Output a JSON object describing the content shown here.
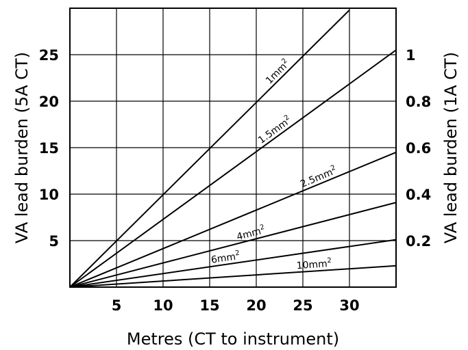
{
  "chart_data": {
    "type": "line",
    "xlabel": "Metres (CT to instrument)",
    "ylabel_left": "VA lead burden (5A CT)",
    "ylabel_right": "VA lead burden (1A CT)",
    "xlim": [
      0,
      35
    ],
    "ylim_left": [
      0,
      30
    ],
    "ylim_right": [
      0,
      1.2
    ],
    "x_ticks": [
      "5",
      "10",
      "15",
      "20",
      "25",
      "30"
    ],
    "y_ticks_left": [
      "5",
      "10",
      "15",
      "20",
      "25"
    ],
    "y_ticks_right": [
      "0.2",
      "0.4",
      "0.6",
      "0.8",
      "1"
    ],
    "grid": true,
    "series": [
      {
        "name": "1mm",
        "sup": "2",
        "x": [
          0,
          30.0
        ],
        "y": [
          0,
          29.8
        ]
      },
      {
        "name": "1.5mm",
        "sup": "2",
        "x": [
          0,
          35.0
        ],
        "y": [
          0,
          25.5
        ]
      },
      {
        "name": "2.5mm",
        "sup": "2",
        "x": [
          0,
          35.0
        ],
        "y": [
          0,
          14.5
        ]
      },
      {
        "name": "4mm",
        "sup": "2",
        "x": [
          0,
          35.0
        ],
        "y": [
          0,
          9.1
        ]
      },
      {
        "name": "6mm",
        "sup": "2",
        "x": [
          0,
          35.0
        ],
        "y": [
          0,
          5.1
        ]
      },
      {
        "name": "10mm",
        "sup": "2",
        "x": [
          0,
          35.0
        ],
        "y": [
          0,
          2.3
        ]
      }
    ]
  }
}
